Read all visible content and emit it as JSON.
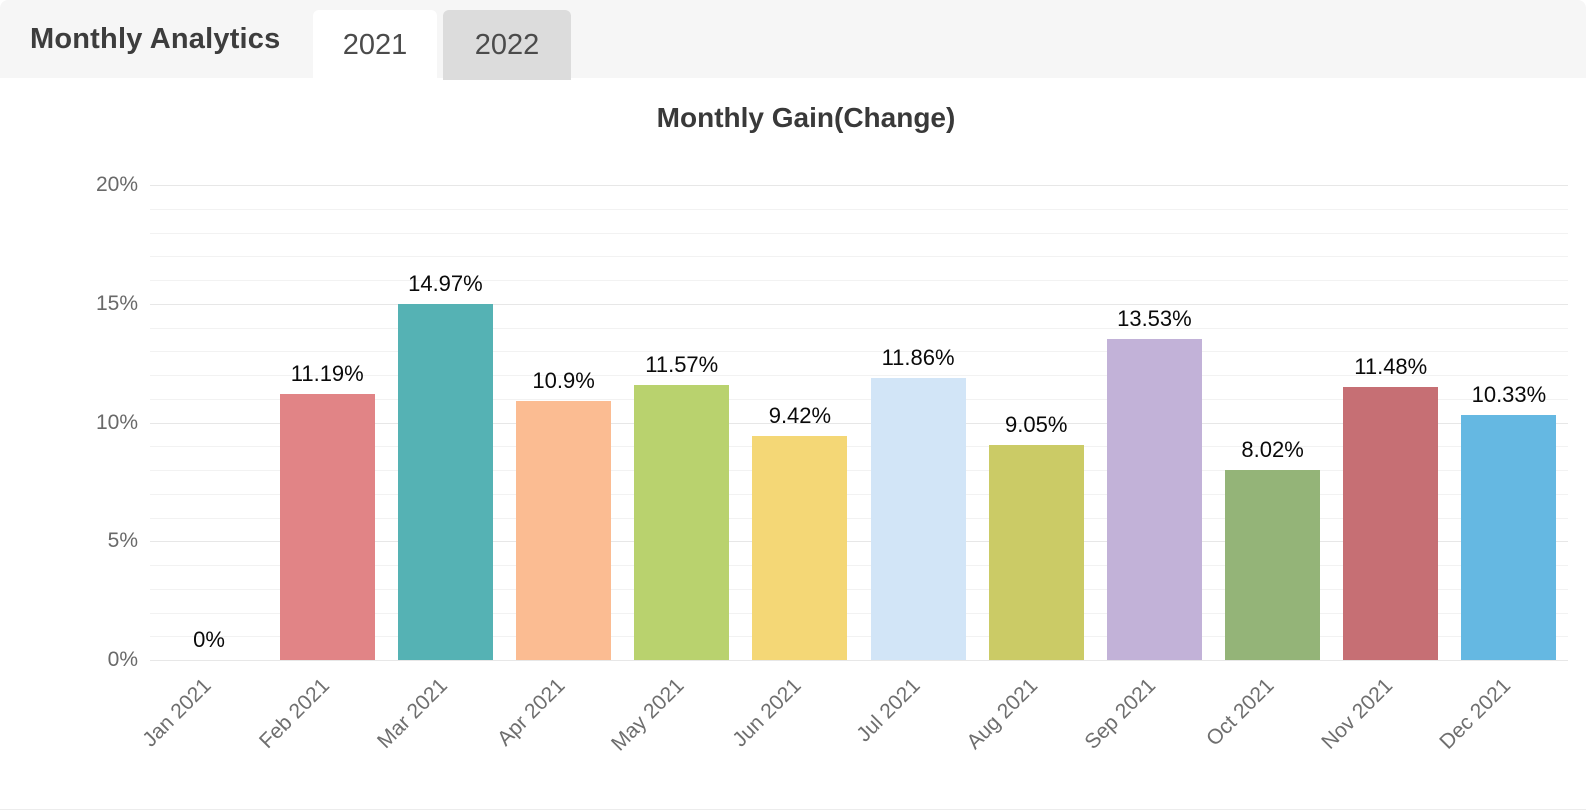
{
  "panel": {
    "title": "Monthly Analytics"
  },
  "tabs": [
    {
      "label": "2021",
      "active": true
    },
    {
      "label": "2022",
      "active": false
    }
  ],
  "chart_data": {
    "type": "bar",
    "title": "Monthly Gain(Change)",
    "categories": [
      "Jan 2021",
      "Feb 2021",
      "Mar 2021",
      "Apr 2021",
      "May 2021",
      "Jun 2021",
      "Jul 2021",
      "Aug 2021",
      "Sep 2021",
      "Oct 2021",
      "Nov 2021",
      "Dec 2021"
    ],
    "values": [
      0,
      11.19,
      14.97,
      10.9,
      11.57,
      9.42,
      11.86,
      9.05,
      13.53,
      8.02,
      11.48,
      10.33
    ],
    "value_labels": [
      "0%",
      "11.19%",
      "14.97%",
      "10.9%",
      "11.57%",
      "9.42%",
      "11.86%",
      "9.05%",
      "13.53%",
      "8.02%",
      "11.48%",
      "10.33%"
    ],
    "bar_colors": [
      null,
      "#e18486",
      "#55b2b4",
      "#fbbc92",
      "#b9d26e",
      "#f4d776",
      "#d2e5f7",
      "#cbcb66",
      "#c2b2d8",
      "#94b478",
      "#c66f74",
      "#65b8e2"
    ],
    "xlabel": "",
    "ylabel": "",
    "y_axis": {
      "tick_labels": [
        "0%",
        "5%",
        "10%",
        "15%",
        "20%"
      ],
      "tick_values": [
        0,
        5,
        10,
        15,
        20
      ],
      "min": 0,
      "max": 20,
      "minor_step": 1,
      "major_step": 5
    },
    "grid": "horizontal, minor every 1%, major every 5%",
    "legend": "none"
  }
}
